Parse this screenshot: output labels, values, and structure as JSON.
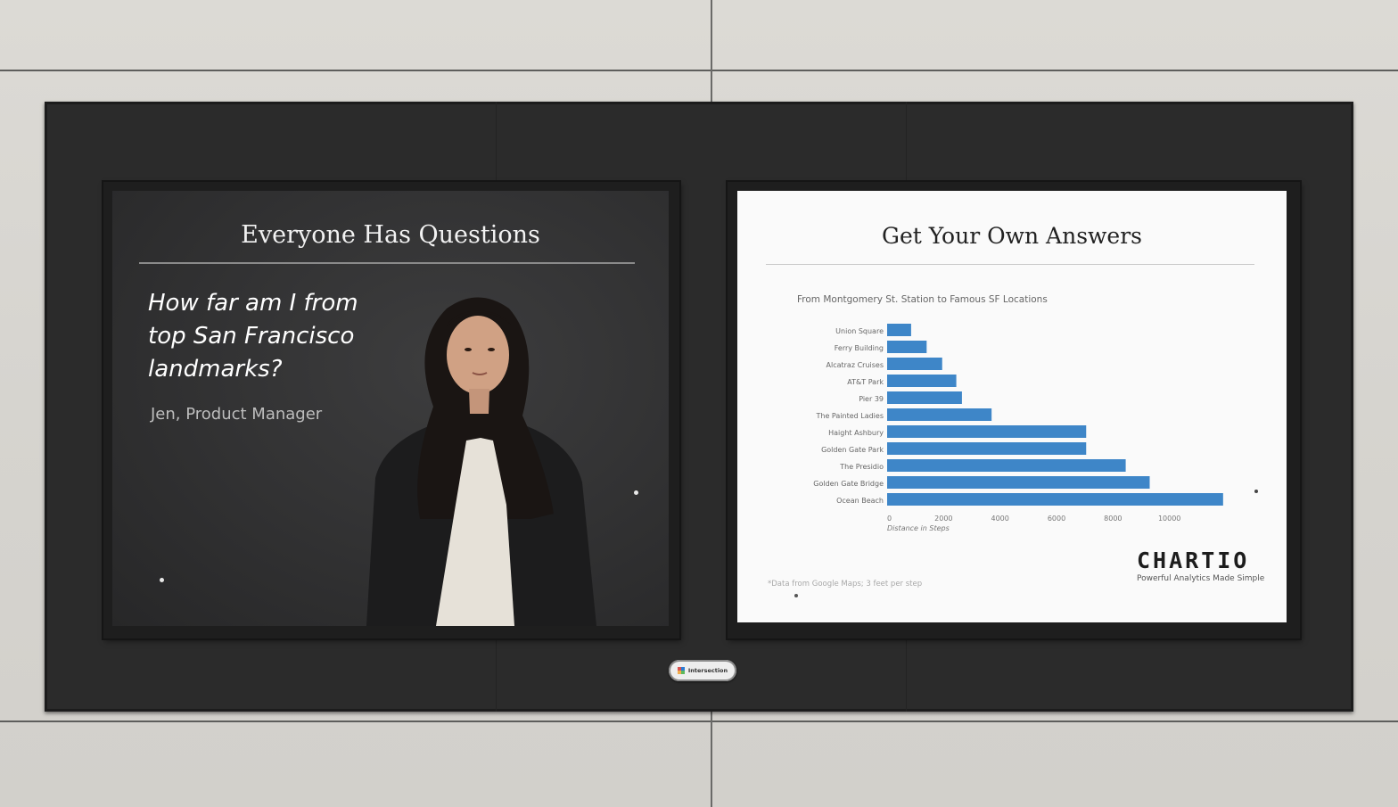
{
  "left_poster": {
    "title": "Everyone Has Questions",
    "question": "How far am I from top San Francisco landmarks?",
    "attribution": "Jen, Product Manager"
  },
  "right_poster": {
    "title": "Get Your Own Answers",
    "footnote": "*Data from Google Maps; 3 feet per step",
    "logo": "CHARTIO",
    "tagline": "Powerful Analytics Made Simple"
  },
  "badge": {
    "label": "Intersection"
  },
  "colors": {
    "bar": "#3e86c8",
    "poster_dark": "#333334",
    "billboard": "#2b2b2b"
  },
  "chart_data": {
    "type": "bar",
    "orientation": "horizontal",
    "title": "From Montgomery St. Station to Famous SF Locations",
    "xlabel": "Distance in Steps",
    "ylabel": "",
    "xlim": [
      0,
      12000
    ],
    "xticks": [
      0,
      2000,
      4000,
      6000,
      8000,
      10000
    ],
    "categories": [
      "Union Square",
      "Ferry Building",
      "Alcatraz Cruises",
      "AT&T Park",
      "Pier 39",
      "The Painted Ladies",
      "Haight Ashbury",
      "Golden Gate Park",
      "The Presidio",
      "Golden Gate Bridge",
      "Ocean Beach"
    ],
    "values": [
      850,
      1400,
      1950,
      2450,
      2650,
      3700,
      7050,
      7050,
      8450,
      9300,
      11900
    ],
    "grid": false,
    "legend": "none"
  }
}
